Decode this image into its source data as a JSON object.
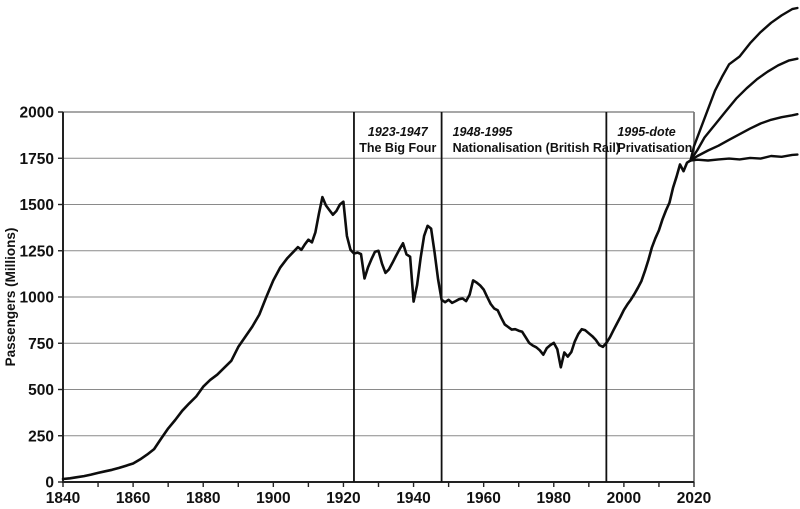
{
  "page": {
    "background_color": "#ffffff"
  },
  "chart_data": {
    "type": "line",
    "title": "",
    "xlabel": "",
    "ylabel": "Passengers (Millions)",
    "xlim": [
      1840,
      2020
    ],
    "ylim": [
      0,
      2000
    ],
    "x_ticks": [
      1840,
      1860,
      1880,
      1900,
      1920,
      1940,
      1960,
      1980,
      2000,
      2020
    ],
    "x_minor_tick_step": 10,
    "y_ticks": [
      0,
      250,
      500,
      750,
      1000,
      1250,
      1500,
      1750,
      2000
    ],
    "grid": "horizontal",
    "legend": "none",
    "colors": {
      "line": "#0d0d0d",
      "grid": "#8a8a8a",
      "axis": "#222222",
      "border": "#7a7a7a",
      "divider": "#111111"
    },
    "eras": [
      {
        "year_line": 1923,
        "label_line1": "1923-1947",
        "label_line2": "The Big Four",
        "align": "middle"
      },
      {
        "year_line": 1948,
        "label_line1": "1948-1995",
        "label_line2": "Nationalisation (British Rail)",
        "align": "start"
      },
      {
        "year_line": 1995,
        "label_line1": "1995-dote",
        "label_line2": "Privatisation",
        "align": "start"
      }
    ],
    "series": [
      {
        "name": "historical-passengers",
        "points": [
          [
            1840,
            16
          ],
          [
            1842,
            20
          ],
          [
            1844,
            26
          ],
          [
            1846,
            32
          ],
          [
            1848,
            40
          ],
          [
            1850,
            49
          ],
          [
            1852,
            58
          ],
          [
            1854,
            66
          ],
          [
            1856,
            76
          ],
          [
            1858,
            88
          ],
          [
            1860,
            100
          ],
          [
            1862,
            122
          ],
          [
            1864,
            148
          ],
          [
            1866,
            178
          ],
          [
            1868,
            235
          ],
          [
            1870,
            290
          ],
          [
            1872,
            335
          ],
          [
            1874,
            385
          ],
          [
            1876,
            425
          ],
          [
            1878,
            462
          ],
          [
            1880,
            515
          ],
          [
            1882,
            552
          ],
          [
            1884,
            580
          ],
          [
            1886,
            618
          ],
          [
            1888,
            655
          ],
          [
            1890,
            730
          ],
          [
            1892,
            785
          ],
          [
            1894,
            840
          ],
          [
            1896,
            905
          ],
          [
            1898,
            1000
          ],
          [
            1900,
            1090
          ],
          [
            1902,
            1160
          ],
          [
            1904,
            1210
          ],
          [
            1906,
            1250
          ],
          [
            1907,
            1270
          ],
          [
            1908,
            1255
          ],
          [
            1909,
            1285
          ],
          [
            1910,
            1310
          ],
          [
            1911,
            1295
          ],
          [
            1912,
            1350
          ],
          [
            1913,
            1450
          ],
          [
            1914,
            1540
          ],
          [
            1915,
            1495
          ],
          [
            1916,
            1470
          ],
          [
            1917,
            1445
          ],
          [
            1918,
            1465
          ],
          [
            1919,
            1500
          ],
          [
            1920,
            1515
          ],
          [
            1921,
            1330
          ],
          [
            1922,
            1255
          ],
          [
            1923,
            1235
          ],
          [
            1924,
            1240
          ],
          [
            1925,
            1232
          ],
          [
            1926,
            1100
          ],
          [
            1927,
            1160
          ],
          [
            1928,
            1205
          ],
          [
            1929,
            1245
          ],
          [
            1930,
            1250
          ],
          [
            1931,
            1180
          ],
          [
            1932,
            1130
          ],
          [
            1933,
            1150
          ],
          [
            1934,
            1185
          ],
          [
            1935,
            1222
          ],
          [
            1936,
            1258
          ],
          [
            1937,
            1290
          ],
          [
            1938,
            1230
          ],
          [
            1939,
            1218
          ],
          [
            1940,
            975
          ],
          [
            1941,
            1065
          ],
          [
            1942,
            1210
          ],
          [
            1943,
            1330
          ],
          [
            1944,
            1385
          ],
          [
            1945,
            1370
          ],
          [
            1946,
            1240
          ],
          [
            1947,
            1095
          ],
          [
            1948,
            985
          ],
          [
            1949,
            972
          ],
          [
            1950,
            985
          ],
          [
            1951,
            968
          ],
          [
            1952,
            978
          ],
          [
            1953,
            988
          ],
          [
            1954,
            992
          ],
          [
            1955,
            978
          ],
          [
            1956,
            1012
          ],
          [
            1957,
            1090
          ],
          [
            1958,
            1078
          ],
          [
            1959,
            1062
          ],
          [
            1960,
            1040
          ],
          [
            1961,
            1000
          ],
          [
            1962,
            962
          ],
          [
            1963,
            938
          ],
          [
            1964,
            928
          ],
          [
            1965,
            888
          ],
          [
            1966,
            852
          ],
          [
            1967,
            838
          ],
          [
            1968,
            824
          ],
          [
            1969,
            826
          ],
          [
            1970,
            818
          ],
          [
            1971,
            812
          ],
          [
            1972,
            782
          ],
          [
            1973,
            752
          ],
          [
            1974,
            738
          ],
          [
            1975,
            728
          ],
          [
            1976,
            712
          ],
          [
            1977,
            688
          ],
          [
            1978,
            724
          ],
          [
            1979,
            740
          ],
          [
            1980,
            752
          ],
          [
            1981,
            718
          ],
          [
            1982,
            620
          ],
          [
            1983,
            700
          ],
          [
            1984,
            678
          ],
          [
            1985,
            702
          ],
          [
            1986,
            760
          ],
          [
            1987,
            800
          ],
          [
            1988,
            826
          ],
          [
            1989,
            820
          ],
          [
            1990,
            804
          ],
          [
            1991,
            788
          ],
          [
            1992,
            768
          ],
          [
            1993,
            740
          ],
          [
            1994,
            730
          ],
          [
            1995,
            752
          ],
          [
            1996,
            782
          ],
          [
            1997,
            820
          ],
          [
            1998,
            856
          ],
          [
            1999,
            892
          ],
          [
            2000,
            930
          ],
          [
            2001,
            960
          ],
          [
            2002,
            986
          ],
          [
            2003,
            1016
          ],
          [
            2004,
            1050
          ],
          [
            2005,
            1086
          ],
          [
            2006,
            1140
          ],
          [
            2007,
            1200
          ],
          [
            2008,
            1268
          ],
          [
            2009,
            1318
          ],
          [
            2010,
            1360
          ],
          [
            2011,
            1420
          ],
          [
            2012,
            1468
          ],
          [
            2013,
            1510
          ],
          [
            2014,
            1590
          ],
          [
            2015,
            1650
          ],
          [
            2016,
            1716
          ],
          [
            2017,
            1680
          ],
          [
            2018,
            1726
          ],
          [
            2019,
            1738
          ]
        ]
      }
    ],
    "projections": [
      {
        "name": "projection-high",
        "points": [
          [
            2019,
            1738
          ],
          [
            2020,
            1815
          ],
          [
            2022,
            1915
          ],
          [
            2024,
            2015
          ],
          [
            2026,
            2115
          ],
          [
            2028,
            2190
          ],
          [
            2030,
            2258
          ],
          [
            2033,
            2300
          ],
          [
            2036,
            2372
          ],
          [
            2039,
            2432
          ],
          [
            2042,
            2482
          ],
          [
            2045,
            2522
          ],
          [
            2048,
            2556
          ],
          [
            2049.5,
            2562
          ]
        ]
      },
      {
        "name": "projection-mid-high",
        "points": [
          [
            2019,
            1738
          ],
          [
            2021,
            1795
          ],
          [
            2023,
            1862
          ],
          [
            2026,
            1932
          ],
          [
            2029,
            2002
          ],
          [
            2032,
            2072
          ],
          [
            2035,
            2128
          ],
          [
            2038,
            2178
          ],
          [
            2041,
            2218
          ],
          [
            2044,
            2252
          ],
          [
            2047,
            2278
          ],
          [
            2049.5,
            2288
          ]
        ]
      },
      {
        "name": "projection-mid-low",
        "points": [
          [
            2019,
            1738
          ],
          [
            2021,
            1762
          ],
          [
            2024,
            1792
          ],
          [
            2027,
            1818
          ],
          [
            2030,
            1850
          ],
          [
            2033,
            1880
          ],
          [
            2036,
            1910
          ],
          [
            2039,
            1938
          ],
          [
            2042,
            1958
          ],
          [
            2045,
            1972
          ],
          [
            2048,
            1982
          ],
          [
            2049.5,
            1988
          ]
        ]
      },
      {
        "name": "projection-flat",
        "points": [
          [
            2019,
            1738
          ],
          [
            2021,
            1742
          ],
          [
            2024,
            1738
          ],
          [
            2027,
            1744
          ],
          [
            2030,
            1748
          ],
          [
            2033,
            1744
          ],
          [
            2036,
            1752
          ],
          [
            2039,
            1748
          ],
          [
            2042,
            1762
          ],
          [
            2045,
            1758
          ],
          [
            2048,
            1768
          ],
          [
            2049.5,
            1770
          ]
        ]
      }
    ]
  }
}
